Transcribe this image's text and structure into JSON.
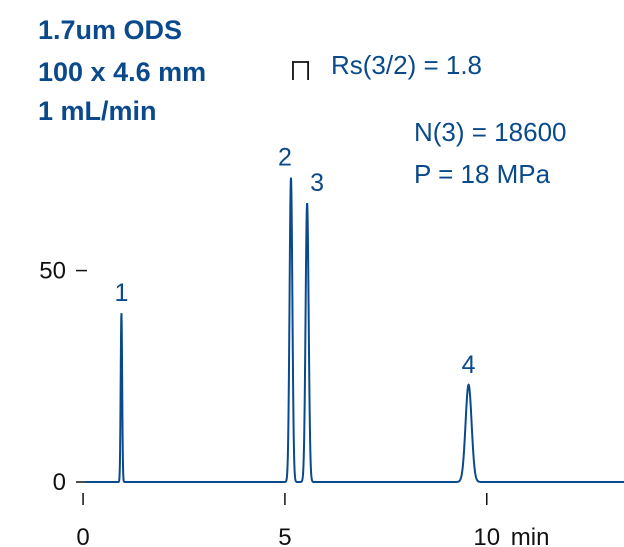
{
  "colors": {
    "trace": "#0a4a8c",
    "text": "#0a4a8c",
    "axis": "#111111"
  },
  "conditions": [
    "1.7um ODS",
    "100 x 4.6 mm",
    "1 mL/min"
  ],
  "annotations": {
    "resolution": "Rs(3/2) = 1.8",
    "plates": "N(3) = 18600",
    "pressure": "P = 18 MPa"
  },
  "chart_data": {
    "type": "line",
    "x_unit": "min",
    "xlim": [
      -0.2,
      13.4
    ],
    "ylim": [
      0,
      92
    ],
    "x_ticks": [
      0,
      5,
      10
    ],
    "x_tick_labels": [
      "0",
      "5",
      "10"
    ],
    "y_ticks": [
      0,
      50
    ],
    "y_tick_labels": [
      "0",
      "50"
    ],
    "peaks": [
      {
        "label": "1",
        "time": 0.95,
        "height": 40,
        "width": 0.018
      },
      {
        "label": "2",
        "time": 5.15,
        "height": 72,
        "width": 0.035
      },
      {
        "label": "3",
        "time": 5.55,
        "height": 66,
        "width": 0.038
      },
      {
        "label": "4",
        "time": 9.55,
        "height": 23,
        "width": 0.075
      }
    ],
    "grid": false,
    "legend": "none"
  }
}
